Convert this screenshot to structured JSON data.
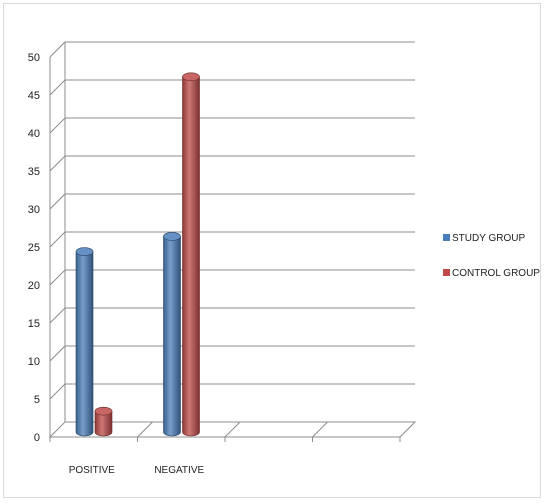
{
  "chart_data": {
    "type": "bar",
    "categories": [
      "POSITIVE",
      "NEGATIVE"
    ],
    "series": [
      {
        "name": "STUDY GROUP",
        "values": [
          24,
          26
        ],
        "color": "#4a7ebb"
      },
      {
        "name": "CONTROL GROUP",
        "values": [
          3,
          47
        ],
        "color": "#be4b48"
      }
    ],
    "ylim": [
      0,
      50
    ],
    "yticks": [
      0,
      5,
      10,
      15,
      20,
      25,
      30,
      35,
      40,
      45,
      50
    ],
    "grid": true,
    "legend": "right",
    "style": "3d-cylinder",
    "colors": {
      "grid": "#8c8c8c",
      "wall": "#ffffff"
    }
  }
}
